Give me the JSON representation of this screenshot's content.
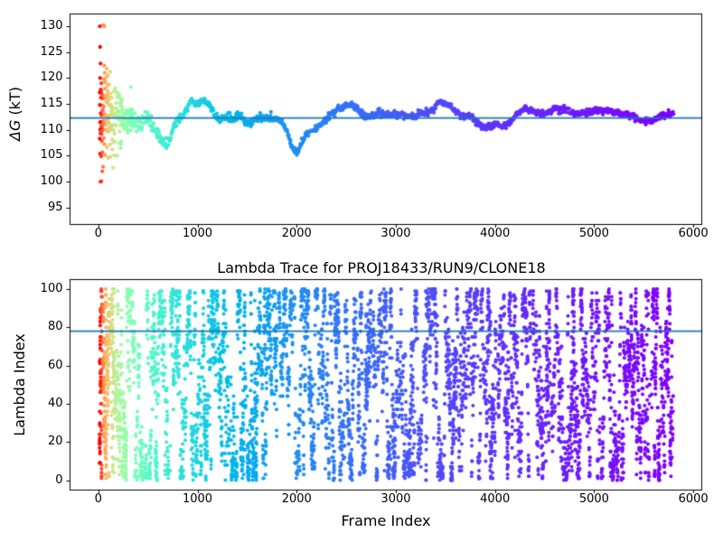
{
  "chart_data": [
    {
      "type": "scatter",
      "name": "delta-g-trace",
      "ylabel_math": "ΔG",
      "ylabel_rest": " (kT)",
      "xticks": [
        0,
        1000,
        2000,
        3000,
        4000,
        5000,
        6000
      ],
      "yticks": [
        95,
        100,
        105,
        110,
        115,
        120,
        125,
        130
      ],
      "xlim": [
        -290,
        6090
      ],
      "ylim": [
        91.6,
        132.4
      ],
      "hline": {
        "y": 112.3,
        "color": "#1f77b4"
      },
      "colormap": {
        "name": "rainbow-reversed-log",
        "xmin": 20,
        "xmax": 5800
      },
      "marker_radius": 2.15,
      "gen": {
        "seed": 12345,
        "x_start": 20,
        "x_end": 5800,
        "step_early": 2.0,
        "step_late": 4.5,
        "early_x_cut": 350,
        "core_sigma_base": 0.33,
        "core_sigma_amp": 4.6,
        "core_sigma_tau": 210,
        "tail_prob_amp": 0.34,
        "tail_prob_tau": 110,
        "tail_sigma": 7.5,
        "y_clamp": [
          100,
          130.4
        ]
      },
      "wander_control_points": [
        [
          20,
          112
        ],
        [
          60,
          112
        ],
        [
          150,
          111.8
        ],
        [
          200,
          112.3
        ],
        [
          260,
          111.6
        ],
        [
          320,
          112.6
        ],
        [
          380,
          112.2
        ],
        [
          420,
          111
        ],
        [
          460,
          112.4
        ],
        [
          520,
          111.6
        ],
        [
          560,
          110.3
        ],
        [
          600,
          109.2
        ],
        [
          650,
          107.3
        ],
        [
          690,
          106.6
        ],
        [
          720,
          107.3
        ],
        [
          760,
          110.2
        ],
        [
          800,
          111.9
        ],
        [
          850,
          112.8
        ],
        [
          880,
          113.5
        ],
        [
          920,
          115.4
        ],
        [
          950,
          115.9
        ],
        [
          980,
          115.2
        ],
        [
          1010,
          115.6
        ],
        [
          1060,
          116.1
        ],
        [
          1100,
          115.5
        ],
        [
          1140,
          114.3
        ],
        [
          1180,
          112.4
        ],
        [
          1220,
          111.6
        ],
        [
          1260,
          112.2
        ],
        [
          1300,
          112.4
        ],
        [
          1360,
          111.6
        ],
        [
          1430,
          112.8
        ],
        [
          1500,
          111.5
        ],
        [
          1560,
          111.9
        ],
        [
          1620,
          112.5
        ],
        [
          1680,
          112
        ],
        [
          1740,
          112.4
        ],
        [
          1800,
          111.7
        ],
        [
          1850,
          111
        ],
        [
          1900,
          109.4
        ],
        [
          1940,
          107.3
        ],
        [
          1980,
          105.8
        ],
        [
          2010,
          106.1
        ],
        [
          2050,
          107.9
        ],
        [
          2100,
          109.2
        ],
        [
          2150,
          110.1
        ],
        [
          2200,
          110.9
        ],
        [
          2250,
          111.2
        ],
        [
          2300,
          111.8
        ],
        [
          2350,
          112.6
        ],
        [
          2400,
          113.5
        ],
        [
          2440,
          114.1
        ],
        [
          2480,
          114.4
        ],
        [
          2520,
          114.7
        ],
        [
          2560,
          114.8
        ],
        [
          2600,
          114.3
        ],
        [
          2650,
          113.6
        ],
        [
          2700,
          113
        ],
        [
          2760,
          112.9
        ],
        [
          2820,
          113.1
        ],
        [
          2880,
          112.8
        ],
        [
          2940,
          112.7
        ],
        [
          3000,
          112.8
        ],
        [
          3060,
          112.6
        ],
        [
          3120,
          112.7
        ],
        [
          3180,
          112.9
        ],
        [
          3240,
          113.2
        ],
        [
          3300,
          113.4
        ],
        [
          3360,
          114
        ],
        [
          3420,
          114.9
        ],
        [
          3450,
          115.1
        ],
        [
          3480,
          114.8
        ],
        [
          3540,
          114.3
        ],
        [
          3600,
          113.6
        ],
        [
          3660,
          112.9
        ],
        [
          3720,
          112.6
        ],
        [
          3780,
          112.3
        ],
        [
          3840,
          111.6
        ],
        [
          3880,
          110.9
        ],
        [
          3920,
          110.5
        ],
        [
          3960,
          110.4
        ],
        [
          4000,
          110.8
        ],
        [
          4040,
          111.1
        ],
        [
          4080,
          110.7
        ],
        [
          4120,
          110.5
        ],
        [
          4160,
          111.1
        ],
        [
          4200,
          112.3
        ],
        [
          4250,
          113.4
        ],
        [
          4300,
          114.6
        ],
        [
          4340,
          114.3
        ],
        [
          4380,
          113.7
        ],
        [
          4420,
          113.5
        ],
        [
          4460,
          113.3
        ],
        [
          4500,
          113.4
        ],
        [
          4550,
          113.7
        ],
        [
          4600,
          113.9
        ],
        [
          4650,
          113.5
        ],
        [
          4700,
          113.6
        ],
        [
          4750,
          113.8
        ],
        [
          4800,
          113.4
        ],
        [
          4850,
          113.2
        ],
        [
          4900,
          113.4
        ],
        [
          4950,
          113.6
        ],
        [
          5000,
          114
        ],
        [
          5030,
          114.1
        ],
        [
          5080,
          113.7
        ],
        [
          5120,
          113.4
        ],
        [
          5180,
          113.2
        ],
        [
          5240,
          113
        ],
        [
          5300,
          112.8
        ],
        [
          5360,
          112.6
        ],
        [
          5420,
          112.4
        ],
        [
          5480,
          112.2
        ],
        [
          5540,
          112
        ],
        [
          5580,
          111.9
        ],
        [
          5620,
          112.1
        ],
        [
          5660,
          112.7
        ],
        [
          5700,
          112.9
        ],
        [
          5740,
          112.8
        ],
        [
          5800,
          112.7
        ]
      ],
      "early_outliers": [
        [
          15,
          130
        ],
        [
          50,
          130.2
        ],
        [
          60,
          130
        ],
        [
          18,
          126
        ],
        [
          22,
          122.8
        ],
        [
          60,
          122.4
        ],
        [
          65,
          121
        ],
        [
          80,
          120.1
        ],
        [
          18,
          120
        ],
        [
          30,
          119
        ],
        [
          90,
          118.5
        ],
        [
          15,
          117.2
        ],
        [
          45,
          116
        ],
        [
          25,
          110.2
        ],
        [
          20,
          110
        ],
        [
          35,
          109.8
        ],
        [
          28,
          104.9
        ],
        [
          100,
          104.6
        ],
        [
          120,
          104.8
        ],
        [
          40,
          102
        ],
        [
          22,
          100
        ],
        [
          30,
          100.1
        ],
        [
          140,
          106.2
        ],
        [
          160,
          105.1
        ],
        [
          190,
          105
        ],
        [
          210,
          107.4
        ],
        [
          230,
          107.8
        ],
        [
          15,
          108.3
        ],
        [
          18,
          111.5
        ],
        [
          24,
          113.2
        ],
        [
          16,
          114.8
        ],
        [
          26,
          116.2
        ],
        [
          32,
          112.8
        ],
        [
          36,
          110.9
        ],
        [
          44,
          113.8
        ],
        [
          48,
          111.2
        ],
        [
          52,
          114.5
        ],
        [
          70,
          119.2
        ],
        [
          85,
          121.8
        ],
        [
          95,
          117.5
        ],
        [
          110,
          118.8
        ],
        [
          75,
          116.5
        ],
        [
          105,
          115.8
        ],
        [
          125,
          117
        ],
        [
          135,
          116.2
        ]
      ]
    },
    {
      "type": "scatter",
      "name": "lambda-trace",
      "title": "Lambda Trace for PROJ18433/RUN9/CLONE18",
      "xlabel": "Frame Index",
      "ylabel": "Lambda Index",
      "xticks": [
        0,
        1000,
        2000,
        3000,
        4000,
        5000,
        6000
      ],
      "yticks": [
        0,
        20,
        40,
        60,
        80,
        100
      ],
      "xlim": [
        -290,
        6090
      ],
      "ylim": [
        -5.25,
        105.25
      ],
      "hline": {
        "y": 78,
        "color": "#1f77b4"
      },
      "colormap": {
        "name": "rainbow-reversed-log",
        "xmin": 20,
        "xmax": 5800
      },
      "marker_radius": 2.0,
      "walk": {
        "seed": 777,
        "x_start": 12,
        "x_end": 5805,
        "y_start": 62,
        "step_sigma": 10.5,
        "jump_prob": 0.06,
        "jump_prob_early": 0.2,
        "early_x_cut": 160,
        "regime_prob": 0.04,
        "gap_prob": 0.003,
        "y_min": 0,
        "y_max": 100,
        "edge_stick_prob": 0.28,
        "edge_zone": 5,
        "dwell_prob": 0.16
      }
    }
  ]
}
